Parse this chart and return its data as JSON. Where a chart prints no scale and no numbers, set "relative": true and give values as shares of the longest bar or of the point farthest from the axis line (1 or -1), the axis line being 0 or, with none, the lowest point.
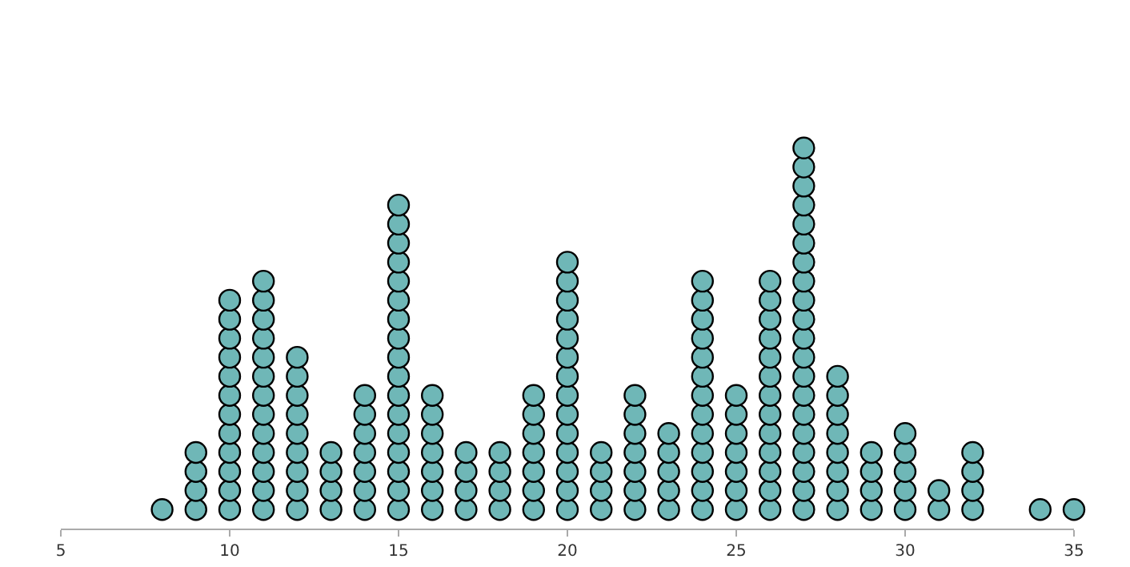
{
  "chart_data": {
    "type": "scatter",
    "marker": "circle",
    "relative": true,
    "tick_labels": "x",
    "xlim": [
      5,
      35
    ],
    "xticks": [
      5,
      10,
      15,
      20,
      25,
      30,
      35
    ],
    "series": [
      {
        "color": "#6fb7b7",
        "x": [
          8,
          9,
          9,
          9,
          9,
          10,
          10,
          10,
          10,
          10,
          10,
          10,
          10,
          10,
          10,
          10,
          10,
          11,
          11,
          11,
          11,
          11,
          11,
          11,
          11,
          11,
          11,
          11,
          11,
          11,
          12,
          12,
          12,
          12,
          12,
          12,
          12,
          12,
          12,
          13,
          13,
          13,
          13,
          14,
          14,
          14,
          14,
          14,
          14,
          14,
          15,
          15,
          15,
          15,
          15,
          15,
          15,
          15,
          15,
          15,
          15,
          15,
          15,
          15,
          15,
          15,
          15,
          16,
          16,
          16,
          16,
          16,
          16,
          16,
          17,
          17,
          17,
          17,
          18,
          18,
          18,
          18,
          19,
          19,
          19,
          19,
          19,
          19,
          19,
          20,
          20,
          20,
          20,
          20,
          20,
          20,
          20,
          20,
          20,
          20,
          20,
          20,
          20,
          21,
          21,
          21,
          21,
          22,
          22,
          22,
          22,
          22,
          22,
          22,
          23,
          23,
          23,
          23,
          23,
          24,
          24,
          24,
          24,
          24,
          24,
          24,
          24,
          24,
          24,
          24,
          24,
          24,
          25,
          25,
          25,
          25,
          25,
          25,
          25,
          26,
          26,
          26,
          26,
          26,
          26,
          26,
          26,
          26,
          26,
          26,
          26,
          26,
          27,
          27,
          27,
          27,
          27,
          27,
          27,
          27,
          27,
          27,
          27,
          27,
          27,
          27,
          27,
          27,
          27,
          27,
          27,
          27,
          28,
          28,
          28,
          28,
          28,
          28,
          28,
          28,
          29,
          29,
          29,
          29,
          30,
          30,
          30,
          30,
          30,
          31,
          31,
          32,
          32,
          32,
          32,
          34,
          35
        ],
        "values": [
          0.05,
          0.05,
          0.1,
          0.15,
          0.2,
          0.05,
          0.1,
          0.15,
          0.2,
          0.25,
          0.3,
          0.35,
          0.4,
          0.45,
          0.5,
          0.55,
          0.6,
          0.05,
          0.1,
          0.15,
          0.2,
          0.25,
          0.3,
          0.35,
          0.4,
          0.45,
          0.5,
          0.55,
          0.6,
          0.65,
          0.05,
          0.1,
          0.15,
          0.2,
          0.25,
          0.3,
          0.35,
          0.4,
          0.45,
          0.05,
          0.1,
          0.15,
          0.2,
          0.05,
          0.1,
          0.15,
          0.2,
          0.25,
          0.3,
          0.35,
          0.05,
          0.1,
          0.15,
          0.2,
          0.25,
          0.3,
          0.35,
          0.4,
          0.45,
          0.5,
          0.55,
          0.6,
          0.65,
          0.7,
          0.75,
          0.8,
          0.85,
          0.05,
          0.1,
          0.15,
          0.2,
          0.25,
          0.3,
          0.35,
          0.05,
          0.1,
          0.15,
          0.2,
          0.05,
          0.1,
          0.15,
          0.2,
          0.05,
          0.1,
          0.15,
          0.2,
          0.25,
          0.3,
          0.35,
          0.05,
          0.1,
          0.15,
          0.2,
          0.25,
          0.3,
          0.35,
          0.4,
          0.45,
          0.5,
          0.55,
          0.6,
          0.65,
          0.7,
          0.05,
          0.1,
          0.15,
          0.2,
          0.05,
          0.1,
          0.15,
          0.2,
          0.25,
          0.3,
          0.35,
          0.05,
          0.1,
          0.15,
          0.2,
          0.25,
          0.05,
          0.1,
          0.15,
          0.2,
          0.25,
          0.3,
          0.35,
          0.4,
          0.45,
          0.5,
          0.55,
          0.6,
          0.65,
          0.05,
          0.1,
          0.15,
          0.2,
          0.25,
          0.3,
          0.35,
          0.05,
          0.1,
          0.15,
          0.2,
          0.25,
          0.3,
          0.35,
          0.4,
          0.45,
          0.5,
          0.55,
          0.6,
          0.65,
          0.05,
          0.1,
          0.15,
          0.2,
          0.25,
          0.3,
          0.35,
          0.4,
          0.45,
          0.5,
          0.55,
          0.6,
          0.65,
          0.7,
          0.75,
          0.8,
          0.85,
          0.9,
          0.95,
          1,
          0.05,
          0.1,
          0.15,
          0.2,
          0.25,
          0.3,
          0.35,
          0.4,
          0.05,
          0.1,
          0.15,
          0.2,
          0.05,
          0.1,
          0.15,
          0.2,
          0.25,
          0.05,
          0.1,
          0.05,
          0.1,
          0.15,
          0.2,
          0.05,
          0.05
        ]
      }
    ]
  }
}
